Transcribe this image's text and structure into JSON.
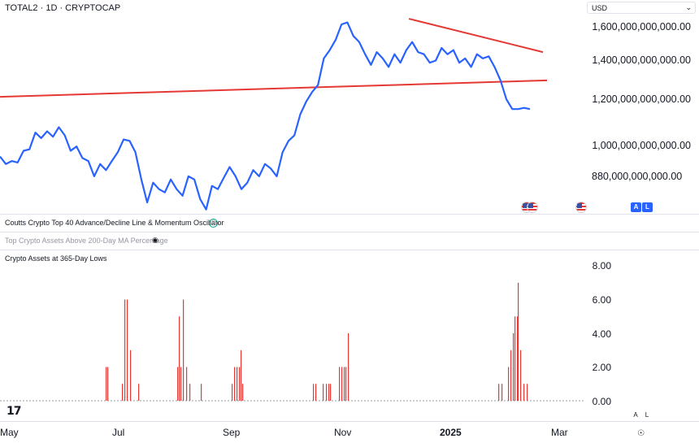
{
  "header": {
    "symbol": "TOTAL2 · 1D · CRYPTOCAP",
    "currency": "USD"
  },
  "price_scale": {
    "labels": [
      "1,600,000,000,000.00",
      "1,400,000,000,000.00",
      "1,200,000,000,000.00",
      "1,000,000,000,000.00",
      "880,000,000,000.00"
    ]
  },
  "badges": {
    "auto": "A",
    "log": "L"
  },
  "indicators": {
    "advance_decline": "Coutts Crypto Top 40 Advance/Decline Line & Momentum Oscillator",
    "above_ma": "Top Crypto Assets Above 200-Day MA Percentage",
    "lows_pane": "Crypto Assets at 365-Day Lows"
  },
  "time_axis": {
    "labels": [
      "May",
      "Jul",
      "Sep",
      "Nov",
      "2025",
      "Mar"
    ]
  },
  "icons": {
    "brace": "code-brace-icon",
    "eye": "eye-icon",
    "flag": "us-flag-icon",
    "logo": "tradingview-logo-icon",
    "settings": "gear-icon"
  },
  "colors": {
    "price_line": "#2962ff",
    "trendline": "#e53935",
    "bars": "#e53935",
    "accent": "#2962ff"
  },
  "chart_data": [
    {
      "type": "line",
      "title": "TOTAL2 · 1D · CRYPTOCAP",
      "log_scale": true,
      "x_range": [
        "Apr 2024",
        "Feb 2025"
      ],
      "y_ticks": [
        880000000000,
        1000000000000,
        1200000000000,
        1400000000000,
        1600000000000
      ],
      "series": [
        {
          "values": [
            1025,
            1000,
            1010,
            1005,
            1045,
            1050,
            1110,
            1090,
            1115,
            1095,
            1130,
            1100,
            1045,
            1060,
            1020,
            1010,
            960,
            1000,
            980,
            1010,
            1040,
            1085,
            1080,
            1040,
            950,
            880,
            940,
            920,
            910,
            950,
            920,
            900,
            960,
            950,
            890,
            860,
            930,
            920,
            955,
            990,
            960,
            920,
            940,
            980,
            960,
            1000,
            985,
            960,
            1040,
            1080,
            1100,
            1180,
            1230,
            1270,
            1300,
            1420,
            1460,
            1510,
            1590,
            1600,
            1530,
            1500,
            1440,
            1390,
            1450,
            1420,
            1380,
            1440,
            1400,
            1460,
            1500,
            1450,
            1440,
            1400,
            1410,
            1470,
            1440,
            1460,
            1400,
            1420,
            1380,
            1440,
            1420,
            1430,
            1380,
            1320,
            1240,
            1200,
            1200,
            1205,
            1200
          ]
        }
      ],
      "trendlines": [
        {
          "from": [
            "Apr 2024",
            1250000000000
          ],
          "to": [
            "Feb 2025",
            1320000000000
          ]
        },
        {
          "from": [
            "Dec 2024",
            1620000000000
          ],
          "to": [
            "Feb 2025",
            1450000000000
          ]
        }
      ]
    },
    {
      "type": "bar",
      "title": "Crypto Assets at 365-Day Lows",
      "ylim": [
        0,
        8
      ],
      "y_ticks": [
        0,
        2,
        4,
        6,
        8
      ],
      "series": [
        {
          "values": [
            0,
            0,
            0,
            0,
            0,
            0,
            0,
            0,
            0,
            0,
            0,
            0,
            0,
            0,
            0,
            0,
            0,
            0,
            0,
            0,
            0,
            0,
            0,
            0,
            0,
            0,
            0,
            0,
            0,
            0,
            0,
            0,
            0,
            0,
            0,
            0,
            0,
            0,
            0,
            0,
            0,
            0,
            0,
            0,
            0,
            0,
            0,
            0,
            0,
            0,
            0,
            0,
            0,
            0,
            0,
            0,
            0,
            0,
            0,
            0,
            0,
            0,
            0,
            0,
            0,
            0,
            0,
            0,
            0,
            0,
            0,
            0,
            0,
            0,
            0,
            0,
            0,
            0,
            0,
            0,
            0,
            0,
            0,
            0,
            0,
            0,
            0,
            0,
            0,
            0,
            0,
            0,
            0,
            0,
            0,
            0,
            0,
            0,
            0,
            0,
            0,
            0,
            0,
            0,
            0,
            0,
            0,
            0,
            0,
            0,
            0,
            0,
            0,
            0,
            0,
            0,
            0,
            0,
            0,
            0,
            0,
            0,
            0,
            0,
            0,
            0,
            0,
            0,
            0,
            0,
            0,
            0,
            0,
            0,
            0,
            0,
            0,
            0,
            0,
            0,
            0,
            0,
            0,
            0,
            0,
            0,
            0,
            0,
            0,
            0,
            0,
            0,
            0,
            0,
            0,
            0,
            0,
            0,
            0,
            0,
            0,
            0,
            0,
            0,
            0,
            0,
            0,
            0,
            0,
            0,
            0,
            0,
            0,
            0,
            0,
            0,
            0,
            0,
            0,
            0,
            0,
            0,
            0,
            0,
            0,
            0,
            0,
            0,
            0,
            0,
            0,
            0,
            0,
            0,
            0,
            0,
            0,
            0,
            0,
            0,
            0,
            0,
            0,
            0,
            0,
            0,
            0,
            0,
            0,
            0,
            0,
            0,
            0,
            0,
            0,
            0,
            0,
            0,
            0,
            0,
            0,
            0,
            0,
            0,
            0,
            0,
            0,
            0,
            0,
            0,
            0,
            0,
            0,
            0,
            0,
            0,
            0,
            0,
            0,
            0,
            0,
            0,
            0,
            0,
            0,
            0,
            0,
            0,
            0,
            0,
            0,
            0,
            0,
            0,
            0,
            0,
            0,
            0,
            0,
            0,
            0,
            0,
            0,
            0,
            0,
            0,
            0,
            0,
            0,
            0,
            0,
            0,
            0,
            0,
            0,
            0,
            0,
            0,
            0,
            0,
            0,
            0,
            0,
            0,
            0,
            0,
            0,
            0,
            0,
            0,
            0,
            0,
            0,
            0,
            0,
            0,
            0,
            0,
            0,
            0,
            0,
            0,
            0
          ]
        }
      ],
      "bars": [
        {
          "x": 130,
          "v": 2
        },
        {
          "x": 132,
          "v": 2
        },
        {
          "x": 150,
          "v": 1
        },
        {
          "x": 153,
          "v": 6
        },
        {
          "x": 156,
          "v": 6
        },
        {
          "x": 160,
          "v": 3
        },
        {
          "x": 170,
          "v": 1
        },
        {
          "x": 218,
          "v": 2
        },
        {
          "x": 220,
          "v": 5
        },
        {
          "x": 222,
          "v": 2
        },
        {
          "x": 225,
          "v": 6
        },
        {
          "x": 229,
          "v": 2
        },
        {
          "x": 233,
          "v": 1
        },
        {
          "x": 247,
          "v": 1
        },
        {
          "x": 285,
          "v": 1
        },
        {
          "x": 288,
          "v": 2
        },
        {
          "x": 291,
          "v": 2
        },
        {
          "x": 294,
          "v": 2
        },
        {
          "x": 296,
          "v": 3
        },
        {
          "x": 298,
          "v": 1
        },
        {
          "x": 385,
          "v": 1
        },
        {
          "x": 388,
          "v": 1
        },
        {
          "x": 397,
          "v": 1
        },
        {
          "x": 401,
          "v": 1
        },
        {
          "x": 404,
          "v": 1
        },
        {
          "x": 406,
          "v": 1
        },
        {
          "x": 417,
          "v": 2
        },
        {
          "x": 420,
          "v": 2
        },
        {
          "x": 423,
          "v": 2
        },
        {
          "x": 425,
          "v": 2
        },
        {
          "x": 428,
          "v": 4
        },
        {
          "x": 613,
          "v": 1
        },
        {
          "x": 617,
          "v": 1
        },
        {
          "x": 625,
          "v": 2
        },
        {
          "x": 628,
          "v": 3
        },
        {
          "x": 631,
          "v": 4
        },
        {
          "x": 633,
          "v": 5
        },
        {
          "x": 636,
          "v": 5
        },
        {
          "x": 637,
          "v": 7
        },
        {
          "x": 640,
          "v": 3
        },
        {
          "x": 644,
          "v": 1
        },
        {
          "x": 648,
          "v": 1
        }
      ]
    }
  ]
}
